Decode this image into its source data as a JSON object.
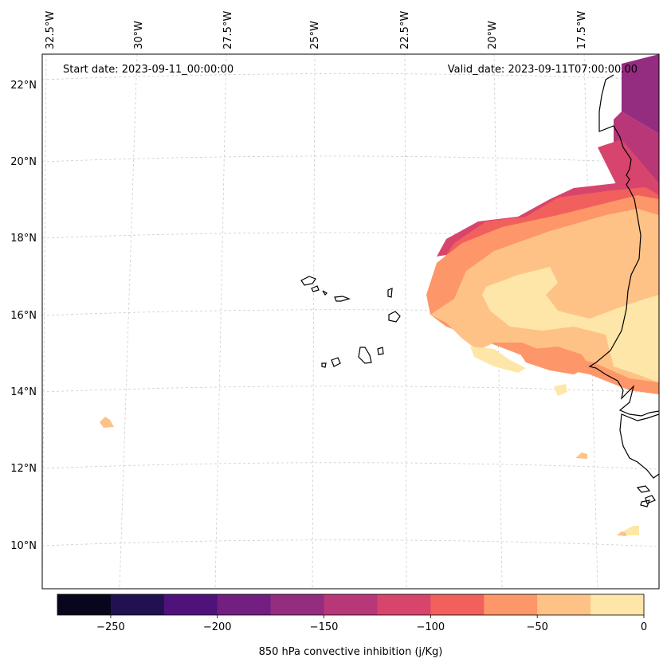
{
  "map": {
    "start_label": "Start date: 2023-09-11_00:00:00",
    "valid_label": "Valid_date: 2023-09-11T07:00:00.00",
    "top_lon_labels": [
      "32.5°W",
      "30°W",
      "27.5°W",
      "25°W",
      "22.5°W",
      "20°W",
      "17.5°W"
    ],
    "left_lat_labels": [
      "22°N",
      "20°N",
      "18°N",
      "16°N",
      "14°N",
      "12°N",
      "10°N"
    ],
    "colors": {
      "coast": "#000000",
      "grid": "#cccccc",
      "frame": "#000000"
    }
  },
  "colorbar": {
    "label": "850 hPa convective inhibition (j/Kg)",
    "ticks": [
      "−250",
      "−200",
      "−150",
      "−100",
      "−50",
      "0"
    ],
    "bin_edges": [
      -275,
      -250,
      -225,
      -200,
      -175,
      -150,
      -125,
      -100,
      -75,
      -50,
      -25,
      0
    ],
    "colors": [
      "#07061c",
      "#221150",
      "#4f127b",
      "#721f81",
      "#942c80",
      "#b73779",
      "#d8456c",
      "#f1605d",
      "#fd9668",
      "#fec287",
      "#fde6a7"
    ]
  }
}
